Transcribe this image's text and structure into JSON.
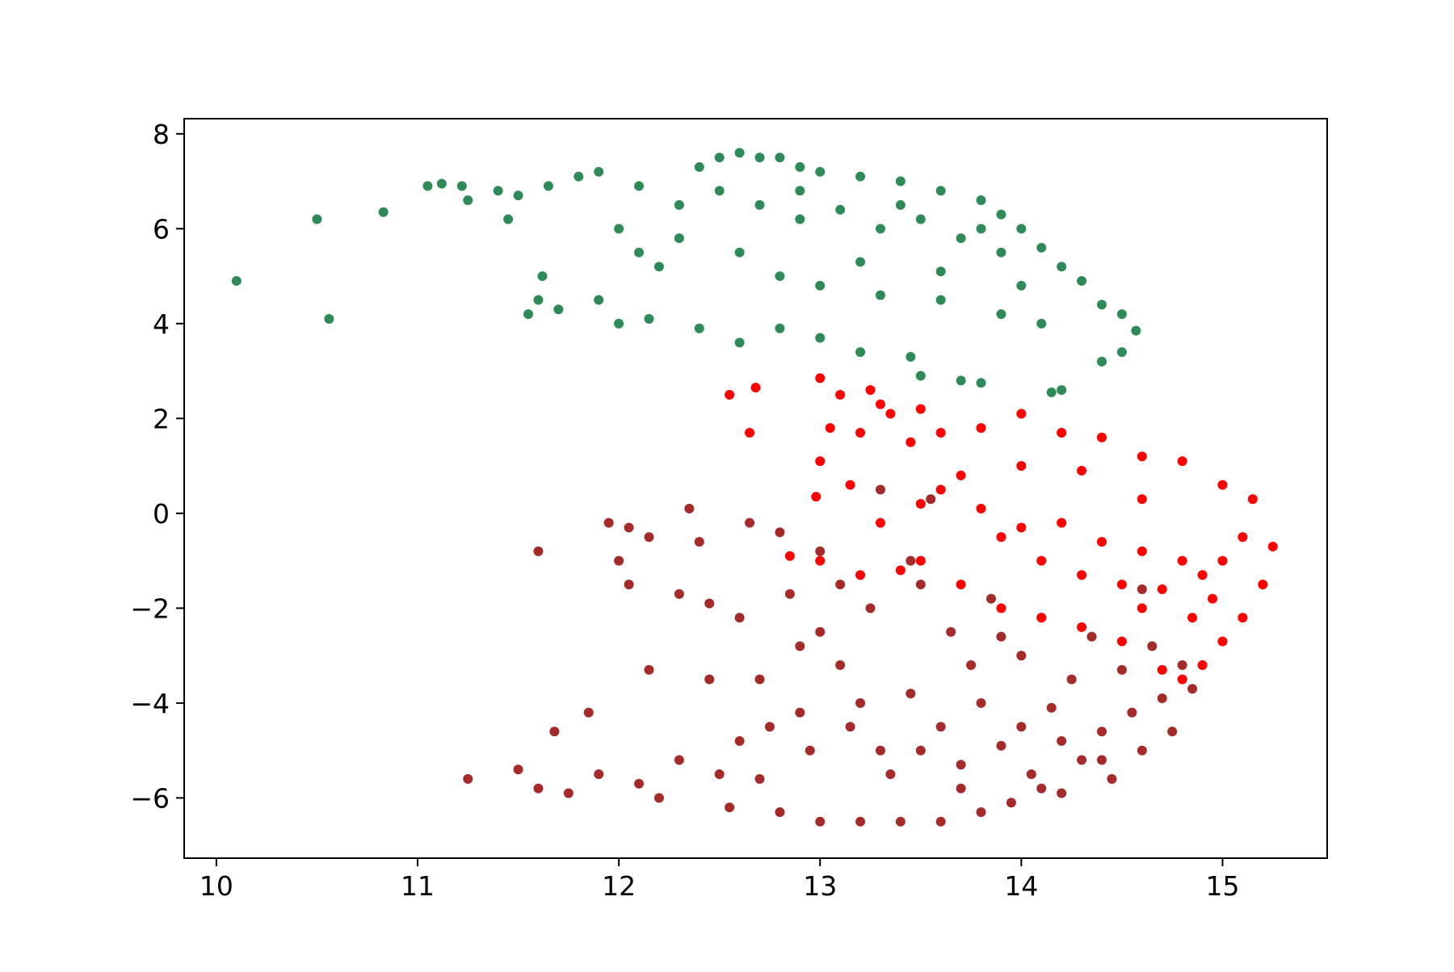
{
  "chart_data": {
    "type": "scatter",
    "xlim": [
      9.84,
      15.52
    ],
    "ylim": [
      -7.27,
      8.32
    ],
    "xticks": [
      10,
      11,
      12,
      13,
      14,
      15
    ],
    "yticks": [
      {
        "value": -6,
        "label": "−6"
      },
      {
        "value": -4,
        "label": "−4"
      },
      {
        "value": -2,
        "label": "−2"
      },
      0,
      2,
      4,
      6,
      8
    ],
    "series": [
      {
        "color": "#2e8b57",
        "x": [
          10.1,
          10.5,
          10.56,
          10.83,
          11.05,
          11.12,
          11.22,
          11.25,
          11.4,
          11.45,
          11.5,
          11.55,
          11.6,
          11.62,
          11.7,
          11.65,
          11.8,
          11.9,
          11.9,
          12.0,
          12.0,
          12.1,
          12.15,
          12.2,
          12.3,
          12.4,
          12.4,
          12.5,
          12.6,
          12.7,
          12.8,
          12.9,
          13.0,
          13.2,
          13.4,
          13.6,
          13.8,
          13.9,
          14.0,
          14.1,
          14.2,
          14.3,
          14.4,
          14.5,
          14.57,
          14.5,
          14.4,
          14.2,
          14.15,
          13.8,
          13.7,
          13.5,
          13.45,
          13.2,
          13.0,
          12.8,
          12.6,
          12.5,
          12.7,
          12.9,
          13.1,
          13.3,
          13.5,
          13.7,
          13.9,
          12.8,
          13.0,
          13.3,
          13.6,
          13.9,
          14.1,
          12.6,
          12.3,
          12.1,
          13.2,
          13.6,
          14.0,
          12.9,
          13.4,
          13.8
        ],
        "values": [
          4.9,
          6.2,
          4.1,
          6.35,
          6.9,
          6.95,
          6.9,
          6.6,
          6.8,
          6.2,
          6.7,
          4.2,
          4.5,
          5.0,
          4.3,
          6.9,
          7.1,
          7.2,
          4.5,
          4.0,
          6.0,
          6.9,
          4.1,
          5.2,
          6.5,
          7.3,
          3.9,
          7.5,
          7.6,
          7.5,
          7.5,
          7.3,
          7.2,
          7.1,
          7.0,
          6.8,
          6.6,
          6.3,
          6.0,
          5.6,
          5.2,
          4.9,
          4.4,
          4.2,
          3.85,
          3.4,
          3.2,
          2.6,
          2.55,
          2.75,
          2.8,
          2.9,
          3.3,
          3.4,
          3.7,
          3.9,
          3.6,
          6.8,
          6.5,
          6.2,
          6.4,
          6.0,
          6.2,
          5.8,
          5.5,
          5.0,
          4.8,
          4.6,
          4.5,
          4.2,
          4.0,
          5.5,
          5.8,
          5.5,
          5.3,
          5.1,
          4.8,
          6.8,
          6.5,
          6.0
        ]
      },
      {
        "color": "#a52a2a",
        "x": [
          11.25,
          11.5,
          11.6,
          11.6,
          11.68,
          11.75,
          11.85,
          11.9,
          11.95,
          12.0,
          12.05,
          12.05,
          12.1,
          12.15,
          12.2,
          12.3,
          12.35,
          12.4,
          12.45,
          12.45,
          12.5,
          12.55,
          12.6,
          12.65,
          12.7,
          12.75,
          12.8,
          12.8,
          12.85,
          12.9,
          12.95,
          13.0,
          13.0,
          13.1,
          13.15,
          13.2,
          13.25,
          13.3,
          13.35,
          13.4,
          13.45,
          13.5,
          13.55,
          13.6,
          13.6,
          13.65,
          13.7,
          13.75,
          13.8,
          13.85,
          13.9,
          13.95,
          14.0,
          14.05,
          14.1,
          14.15,
          14.2,
          14.25,
          14.3,
          14.35,
          14.4,
          14.45,
          14.5,
          14.55,
          14.6,
          14.65,
          14.7,
          14.75,
          14.8,
          14.85,
          13.0,
          13.2,
          12.9,
          12.6,
          12.3,
          13.3,
          13.8,
          14.0,
          14.2,
          13.5,
          13.7,
          14.1,
          14.4,
          13.9,
          12.7,
          13.45,
          13.1,
          14.6,
          12.15
        ],
        "values": [
          -5.6,
          -5.4,
          -5.8,
          -0.8,
          -4.6,
          -5.9,
          -4.2,
          -5.5,
          -0.2,
          -1.0,
          -0.3,
          -1.5,
          -5.7,
          -3.3,
          -6.0,
          -1.7,
          0.1,
          -0.6,
          -1.9,
          -3.5,
          -5.5,
          -6.2,
          -2.2,
          -0.2,
          -3.5,
          -4.5,
          -0.4,
          -6.3,
          -1.7,
          -2.8,
          -5.0,
          -0.8,
          -6.5,
          -3.2,
          -4.5,
          -6.5,
          -2.0,
          0.5,
          -5.5,
          -6.5,
          -3.8,
          -1.5,
          0.3,
          -6.5,
          -4.5,
          -2.5,
          -5.8,
          -3.2,
          -6.3,
          -1.8,
          -4.9,
          -6.1,
          -3.0,
          -5.5,
          -2.2,
          -4.1,
          -5.9,
          -3.5,
          -5.2,
          -2.6,
          -4.6,
          -5.6,
          -3.3,
          -4.2,
          -5.0,
          -2.8,
          -3.9,
          -4.6,
          -3.2,
          -3.7,
          -2.5,
          -4.0,
          -4.2,
          -4.8,
          -5.2,
          -5.0,
          -4.0,
          -4.5,
          -4.8,
          -5.0,
          -5.3,
          -5.8,
          -5.2,
          -2.6,
          -5.6,
          -1.0,
          -1.5,
          -1.6,
          -0.5
        ]
      },
      {
        "color": "#ff0000",
        "x": [
          12.55,
          12.68,
          12.65,
          13.0,
          13.1,
          13.25,
          13.3,
          13.35,
          13.05,
          13.2,
          13.0,
          12.98,
          13.15,
          13.5,
          13.45,
          13.6,
          13.8,
          14.0,
          14.2,
          14.4,
          14.6,
          14.8,
          15.0,
          15.15,
          15.25,
          15.2,
          15.1,
          15.0,
          14.9,
          14.8,
          14.7,
          14.5,
          14.3,
          14.1,
          13.9,
          13.7,
          13.5,
          13.4,
          13.2,
          13.0,
          12.85,
          13.6,
          13.8,
          14.0,
          14.2,
          14.4,
          14.6,
          14.8,
          14.9,
          15.0,
          14.95,
          14.7,
          14.5,
          14.3,
          14.1,
          13.9,
          13.7,
          14.3,
          14.6,
          15.1,
          14.85,
          14.6,
          13.3,
          13.5,
          14.0
        ],
        "values": [
          2.5,
          2.65,
          1.7,
          2.85,
          2.5,
          2.6,
          2.3,
          2.1,
          1.8,
          1.7,
          1.1,
          0.35,
          0.6,
          2.2,
          1.5,
          1.7,
          1.8,
          2.1,
          1.7,
          1.6,
          1.2,
          1.1,
          0.6,
          0.3,
          -0.7,
          -1.5,
          -2.2,
          -2.7,
          -3.2,
          -3.5,
          -3.3,
          -2.7,
          -2.4,
          -2.2,
          -2.0,
          -1.5,
          -1.0,
          -1.2,
          -1.3,
          -1.0,
          -0.9,
          0.5,
          0.1,
          -0.3,
          -0.2,
          -0.6,
          -0.8,
          -1.0,
          -1.3,
          -1.0,
          -1.8,
          -1.6,
          -1.5,
          -1.3,
          -1.0,
          -0.5,
          0.8,
          0.9,
          0.3,
          -0.5,
          -2.2,
          -2.0,
          -0.2,
          0.2,
          1.0
        ]
      }
    ]
  }
}
